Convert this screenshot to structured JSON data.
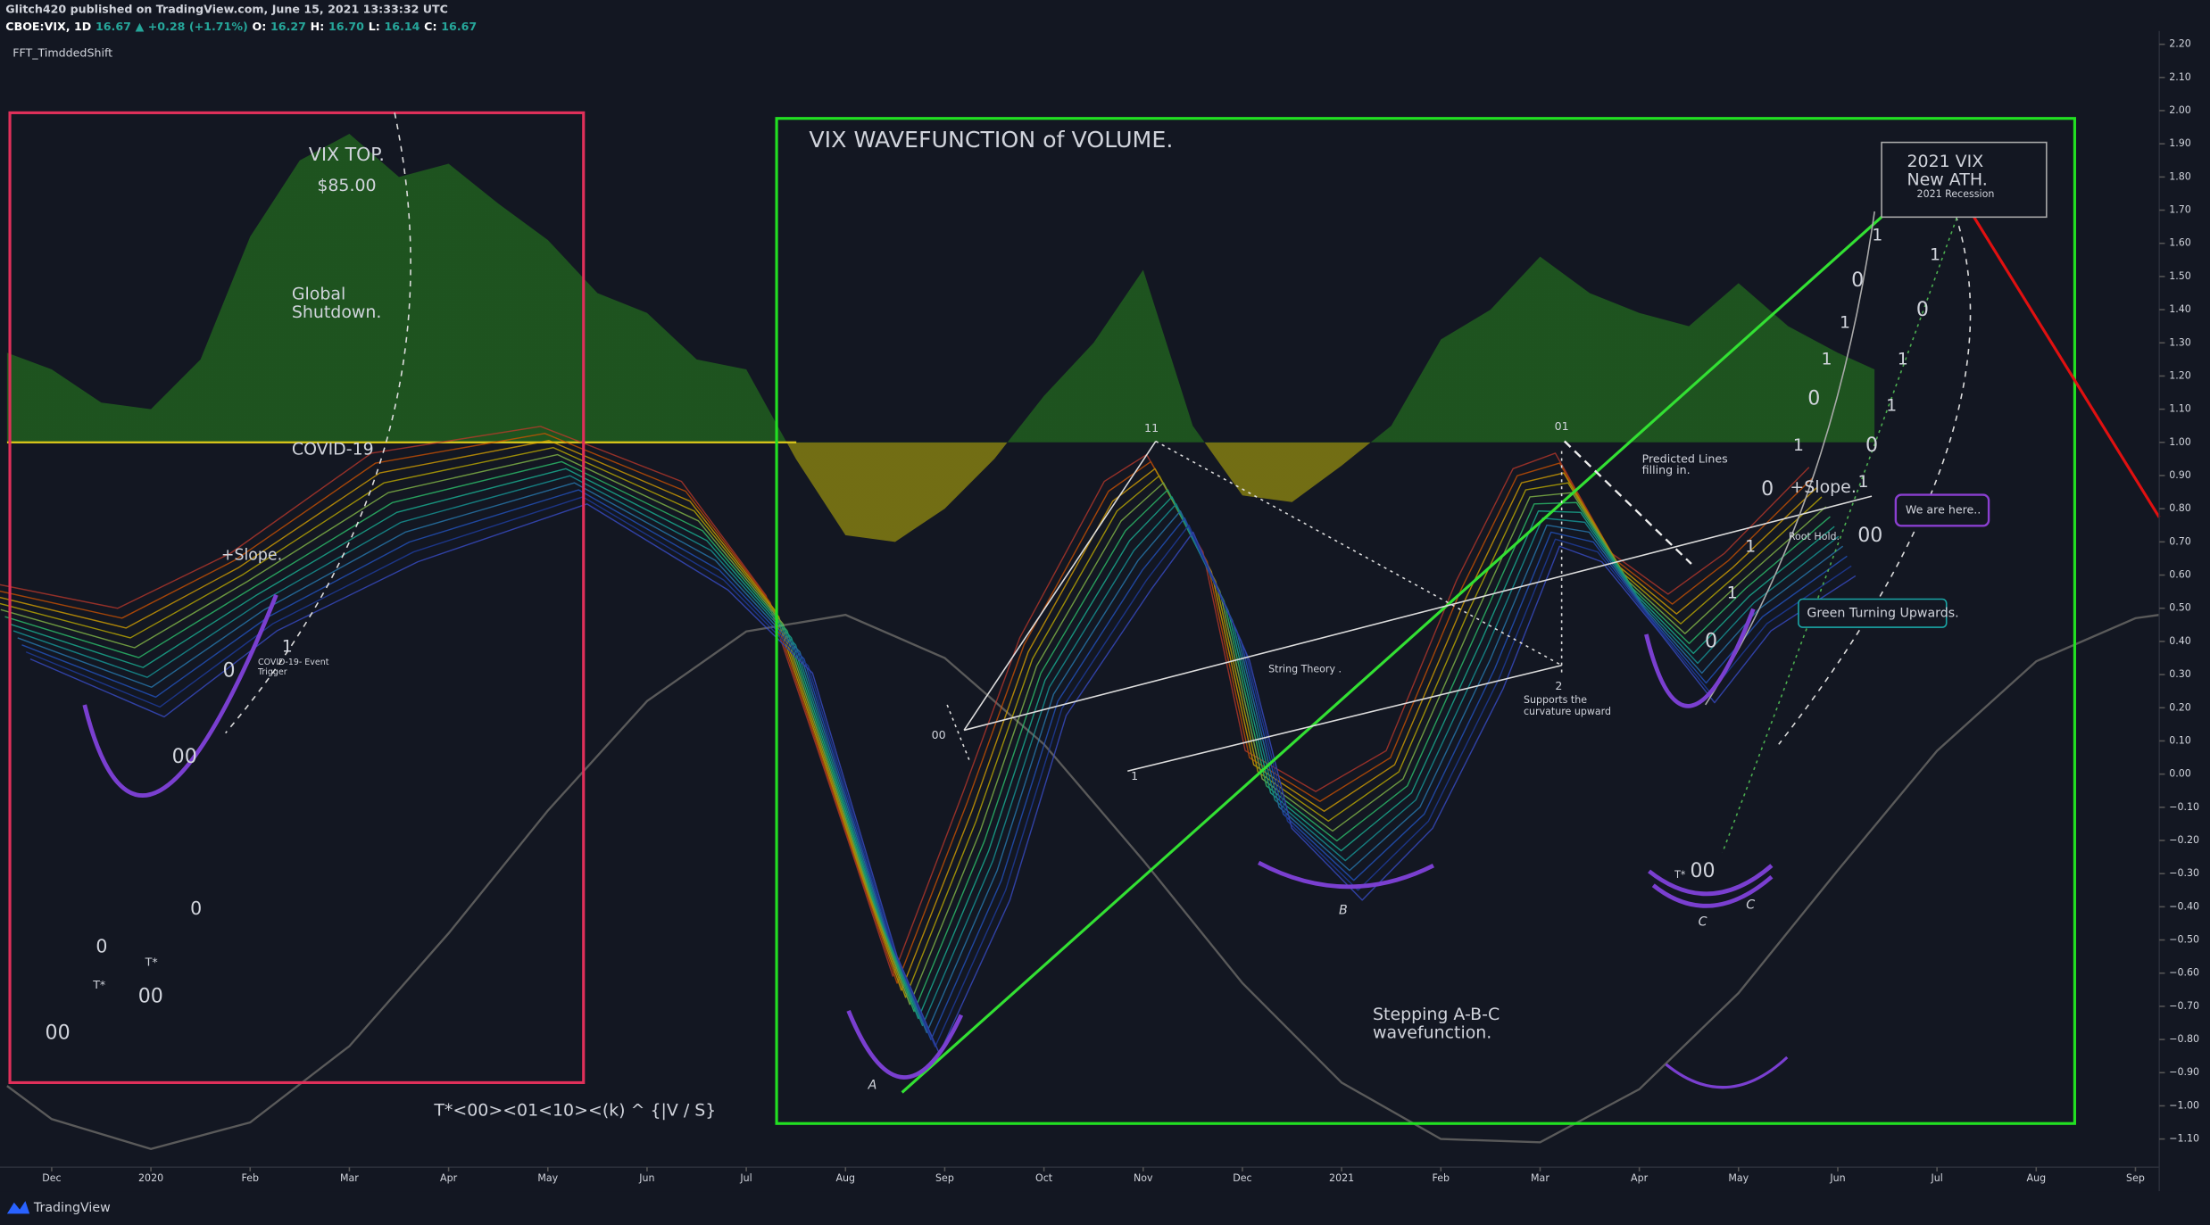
{
  "header": {
    "published": "Glitch420 published on TradingView.com, June 15, 2021 13:33:32 UTC",
    "symbol_parts": [
      "CBOE:VIX, 1D",
      "16.67",
      "▲ +0.28 (+1.71%)",
      "O:",
      "16.27",
      "H:",
      "16.70",
      "L:",
      "16.14",
      "C:",
      "16.67"
    ],
    "indicator": "FFT_TimddedShift"
  },
  "footer": {
    "brand": "TradingView"
  },
  "chart_data": {
    "type": "area",
    "baseline": 1,
    "xlim": [
      -0.45,
      21.24
    ],
    "xticks": [
      {
        "value": 0,
        "label": "Dec"
      },
      {
        "value": 1,
        "label": "2020"
      },
      {
        "value": 2,
        "label": "Feb"
      },
      {
        "value": 3,
        "label": "Mar"
      },
      {
        "value": 4,
        "label": "Apr"
      },
      {
        "value": 5,
        "label": "May"
      },
      {
        "value": 6,
        "label": "Jun"
      },
      {
        "value": 7,
        "label": "Jul"
      },
      {
        "value": 8,
        "label": "Aug"
      },
      {
        "value": 9,
        "label": "Sep"
      },
      {
        "value": 10,
        "label": "Oct"
      },
      {
        "value": 11,
        "label": "Nov"
      },
      {
        "value": 12,
        "label": "Dec"
      },
      {
        "value": 13,
        "label": "2021"
      },
      {
        "value": 14,
        "label": "Feb"
      },
      {
        "value": 15,
        "label": "Mar"
      },
      {
        "value": 16,
        "label": "Apr"
      },
      {
        "value": 17,
        "label": "May"
      },
      {
        "value": 18,
        "label": "Jun"
      },
      {
        "value": 19,
        "label": "Jul"
      },
      {
        "value": 20,
        "label": "Aug"
      },
      {
        "value": 21,
        "label": "Sep"
      }
    ],
    "ylim": [
      -1.185,
      2.24
    ],
    "yticks": [
      {
        "value": 2.2,
        "label": "2.20"
      },
      {
        "value": 2.1,
        "label": "2.10"
      },
      {
        "value": 2.0,
        "label": "2.00"
      },
      {
        "value": 1.9,
        "label": "1.90"
      },
      {
        "value": 1.8,
        "label": "1.80"
      },
      {
        "value": 1.7,
        "label": "1.70"
      },
      {
        "value": 1.6,
        "label": "1.60"
      },
      {
        "value": 1.5,
        "label": "1.50"
      },
      {
        "value": 1.4,
        "label": "1.40"
      },
      {
        "value": 1.3,
        "label": "1.30"
      },
      {
        "value": 1.2,
        "label": "1.20"
      },
      {
        "value": 1.1,
        "label": "1.10"
      },
      {
        "value": 1.0,
        "label": "1.00"
      },
      {
        "value": 0.9,
        "label": "0.90"
      },
      {
        "value": 0.8,
        "label": "0.80"
      },
      {
        "value": 0.7,
        "label": "0.70"
      },
      {
        "value": 0.6,
        "label": "0.60"
      },
      {
        "value": 0.5,
        "label": "0.50"
      },
      {
        "value": 0.4,
        "label": "0.40"
      },
      {
        "value": 0.3,
        "label": "0.30"
      },
      {
        "value": 0.2,
        "label": "0.20"
      },
      {
        "value": 0.1,
        "label": "0.10"
      },
      {
        "value": 0.0,
        "label": "0.00"
      },
      {
        "value": -0.1,
        "label": "−0.10"
      },
      {
        "value": -0.2,
        "label": "−0.20"
      },
      {
        "value": -0.3,
        "label": "−0.30"
      },
      {
        "value": -0.4,
        "label": "−0.40"
      },
      {
        "value": -0.5,
        "label": "−0.50"
      },
      {
        "value": -0.6,
        "label": "−0.60"
      },
      {
        "value": -0.7,
        "label": "−0.70"
      },
      {
        "value": -0.8,
        "label": "−0.80"
      },
      {
        "value": -0.9,
        "label": "−0.90"
      },
      {
        "value": -1.0,
        "label": "−1.00"
      },
      {
        "value": -1.1,
        "label": "−1.10"
      }
    ],
    "series": [
      {
        "color": "#1f5a1f",
        "x": [
          -0.45,
          0,
          0.5,
          1,
          1.5,
          2,
          2.5,
          3,
          3.5,
          4,
          4.5,
          5,
          5.5,
          6,
          6.5,
          7,
          7.5,
          8,
          8.5,
          9,
          9.5,
          10,
          10.5,
          11,
          11.5,
          12,
          12.5,
          13,
          13.5,
          14,
          14.5,
          15,
          15.5,
          16,
          16.5,
          17,
          17.5,
          18,
          18.37
        ],
        "values": [
          1.27,
          1.22,
          1.12,
          1.1,
          1.25,
          1.62,
          1.85,
          1.93,
          1.8,
          1.84,
          1.72,
          1.61,
          1.45,
          1.39,
          1.25,
          1.22,
          0.95,
          0.72,
          0.7,
          0.8,
          0.95,
          1.14,
          1.3,
          1.52,
          1.05,
          0.84,
          0.82,
          0.93,
          1.05,
          1.31,
          1.4,
          1.56,
          1.45,
          1.39,
          1.35,
          1.48,
          1.35,
          1.27,
          1.22
        ]
      },
      {
        "type": "line",
        "color": "#5a5a5a",
        "x": [
          -0.45,
          0,
          1,
          2,
          3,
          4,
          5,
          6,
          7,
          8,
          9,
          10,
          11,
          12,
          13,
          14,
          15,
          16,
          17,
          18,
          19,
          20,
          21,
          21.24
        ],
        "values": [
          -0.94,
          -1.04,
          -1.13,
          -1.05,
          -0.82,
          -0.48,
          -0.11,
          0.22,
          0.43,
          0.48,
          0.35,
          0.09,
          -0.26,
          -0.63,
          -0.93,
          -1.1,
          -1.11,
          -0.95,
          -0.66,
          -0.29,
          0.07,
          0.34,
          0.47,
          0.48
        ]
      }
    ],
    "annotations": [
      "VIX TOP.",
      "$85.00",
      "Global",
      "Shutdown.",
      "COVID-19",
      "+Slope.",
      "1",
      "COVID-19- Event",
      "Trigger",
      "0",
      "00",
      "0",
      "0",
      "T*",
      "T*",
      "00",
      "00",
      "VIX WAVEFUNCTION of VOLUME.",
      "2021 VIX",
      "New ATH.",
      "2021 Recession",
      "11",
      "01",
      "Predicted  Lines",
      "filling in.",
      "+Slope.",
      "We are here..",
      "Root Hold.",
      "00",
      "Green Turning Upwards.",
      "String Theory .",
      "2",
      "Supports the",
      "curvature upward",
      "1",
      "00",
      "A",
      "B",
      "C",
      "C",
      "T*",
      "00",
      "Stepping A-B-C",
      "wavefunction.",
      "T*<00><01<10><(k) ^ {|V / S}",
      "1",
      "0",
      "1",
      "1",
      "0",
      "1",
      "0",
      "1",
      "1",
      "0",
      "1",
      "0",
      "1",
      "1",
      "0",
      "1"
    ]
  }
}
